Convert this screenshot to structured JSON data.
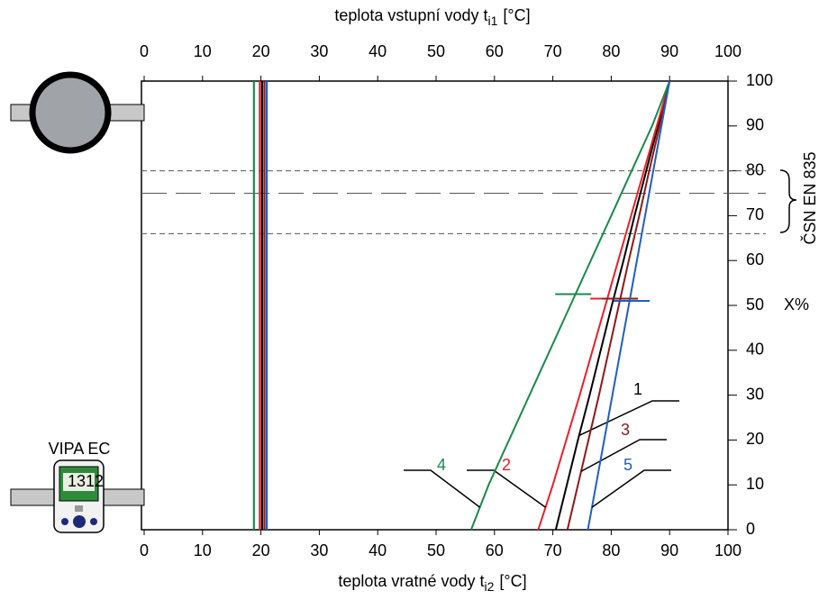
{
  "chart_data": {
    "type": "line",
    "x_label_top": {
      "text": "teplota vstupní vody t",
      "sub": "i1",
      "unit": "[°C]"
    },
    "x_label_bottom": {
      "text": "teplota vratné vody t",
      "sub": "i2",
      "unit": "[°C]"
    },
    "y_label": "X%",
    "xlim": [
      0,
      100
    ],
    "xticks": [
      0,
      10,
      20,
      30,
      40,
      50,
      60,
      70,
      80,
      90,
      100
    ],
    "ylim": [
      0,
      100
    ],
    "yticks": [
      0,
      10,
      20,
      30,
      40,
      50,
      60,
      70,
      80,
      90,
      100
    ],
    "y": [
      0,
      10,
      20,
      30,
      40,
      50,
      60,
      70,
      80,
      90,
      100
    ],
    "series": [
      {
        "name": "1",
        "color": "#000000",
        "x": [
          70.5,
          72.4,
          74.3,
          76.3,
          78.2,
          80.1,
          82.1,
          84.0,
          86.0,
          88.0,
          90
        ],
        "inlet": 20.2,
        "marker": {
          "x": 80.5,
          "y": 51.5
        }
      },
      {
        "name": "2",
        "color": "#e8202a",
        "x": [
          67.5,
          70.0,
          72.3,
          74.6,
          76.8,
          79.0,
          81.2,
          83.4,
          85.6,
          87.8,
          90
        ],
        "inlet": 19.8,
        "marker": {
          "x": 79.5,
          "y": 51.5
        }
      },
      {
        "name": "3",
        "color": "#8b1a1a",
        "x": [
          72.5,
          74.3,
          76.1,
          77.9,
          79.6,
          81.3,
          83.0,
          84.8,
          86.5,
          88.3,
          90
        ],
        "inlet": 20.6,
        "marker": {
          "x": 81.5,
          "y": 51.5
        }
      },
      {
        "name": "4",
        "color": "#1a8a4a",
        "x": [
          56.0,
          59.0,
          62.5,
          66.0,
          69.5,
          73.0,
          76.5,
          80.0,
          83.5,
          87.0,
          90
        ],
        "inlet": 18.8,
        "marker": {
          "x": 73.5,
          "y": 52.5
        }
      },
      {
        "name": "5",
        "color": "#1f5fbf",
        "x": [
          76.0,
          77.4,
          78.8,
          80.2,
          81.6,
          83.0,
          84.4,
          85.8,
          87.2,
          88.6,
          90
        ],
        "inlet": 21.0,
        "marker": {
          "x": 83.5,
          "y": 51
        }
      }
    ],
    "hlines": [
      80,
      75,
      66
    ],
    "band_label": "ČSN EN 835",
    "device_label": "VIPA EC",
    "display": "1312"
  }
}
